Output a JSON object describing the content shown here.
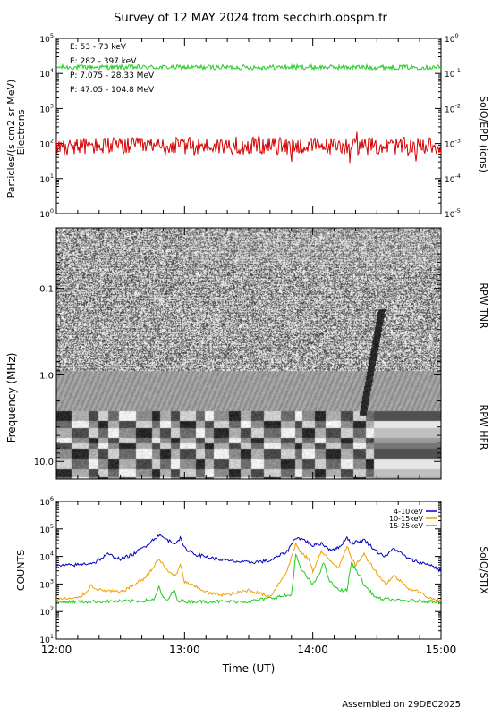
{
  "title": "Survey of 12 MAY 2024 from secchirh.obspm.fr",
  "footer": "Assembled on 29DEC2025",
  "colors": {
    "red": "#d40000",
    "green": "#22cc22",
    "blue": "#0000c0",
    "orange": "#f0a000",
    "black": "#000000"
  },
  "chart_data": [
    {
      "type": "line",
      "panel": "epd",
      "ylabel_left_1": "Particles/(s cm2 sr MeV)",
      "ylabel_left_2": "Electrons",
      "ylabel_right": "SolO/EPD (ions)",
      "yscale": "log",
      "ylim": [
        1,
        100000
      ],
      "yticks": [
        "10^0",
        "10^1",
        "10^2",
        "10^3",
        "10^4",
        "10^5"
      ],
      "ylim_right": [
        1e-05,
        1
      ],
      "yticks_right": [
        "10^-5",
        "10^-4",
        "10^-3",
        "10^-2",
        "10^-1",
        "10^0"
      ],
      "xlim": [
        "12:00",
        "15:00"
      ],
      "legend_position": "top-left",
      "series": [
        {
          "name": "E: 53 - 73 keV",
          "color": "#22cc22",
          "axis": "left",
          "mean": 15000,
          "noise": 0.07
        },
        {
          "name": "E: 282 - 397 keV",
          "color": "#d40000",
          "axis": "left",
          "mean": 85,
          "noise": 0.25
        },
        {
          "name": "P: 7.075 - 28.33 MeV",
          "color": "#000000",
          "axis": "right"
        },
        {
          "name": "P: 47.05 - 104.8 MeV",
          "color": "#0000c0",
          "axis": "right"
        }
      ]
    },
    {
      "type": "heatmap",
      "panel": "rpw",
      "ylabel": "Frequency (MHz)",
      "yscale": "log",
      "ylim": [
        0.02,
        16
      ],
      "yticks": [
        "0.1",
        "1.0",
        "10.0"
      ],
      "label_tnr": "RPW TNR",
      "label_hfr": "RPW HFR",
      "boundary_mhz": 0.9,
      "burst_start": "14:27",
      "xlim": [
        "12:00",
        "15:00"
      ]
    },
    {
      "type": "line",
      "panel": "stix",
      "ylabel": "COUNTS",
      "ylabel_right": "SolO/STIX",
      "xlabel": "Time (UT)",
      "yscale": "log",
      "ylim": [
        10,
        1000000
      ],
      "yticks": [
        "10^1",
        "10^2",
        "10^3",
        "10^4",
        "10^5",
        "10^6"
      ],
      "xlim": [
        "12:00",
        "15:00"
      ],
      "xticks": [
        "12:00",
        "13:00",
        "14:00",
        "15:00"
      ],
      "legend_position": "top-right",
      "series": [
        {
          "name": "4-10keV",
          "color": "#0000c0",
          "x": [
            "12:00",
            "12:10",
            "12:18",
            "12:24",
            "12:30",
            "12:36",
            "12:42",
            "12:48",
            "12:52",
            "12:55",
            "12:58",
            "13:00",
            "13:05",
            "13:12",
            "13:20",
            "13:30",
            "13:40",
            "13:48",
            "13:52",
            "13:56",
            "14:00",
            "14:04",
            "14:08",
            "14:12",
            "14:16",
            "14:18",
            "14:24",
            "14:30",
            "14:34",
            "14:38",
            "14:45",
            "14:50",
            "14:55",
            "15:00"
          ],
          "values": [
            4500,
            5000,
            6000,
            12000,
            8000,
            12000,
            25000,
            60000,
            40000,
            30000,
            45000,
            20000,
            12000,
            9000,
            7000,
            6000,
            7000,
            15000,
            50000,
            40000,
            25000,
            30000,
            18000,
            20000,
            50000,
            30000,
            40000,
            15000,
            10000,
            20000,
            8000,
            6000,
            5000,
            3000
          ]
        },
        {
          "name": "10-15keV",
          "color": "#f0a000",
          "x": [
            "12:00",
            "12:10",
            "12:14",
            "12:16",
            "12:20",
            "12:30",
            "12:36",
            "12:42",
            "12:48",
            "12:52",
            "12:56",
            "12:58",
            "13:00",
            "13:05",
            "13:12",
            "13:20",
            "13:30",
            "13:40",
            "13:48",
            "13:52",
            "13:54",
            "13:58",
            "14:00",
            "14:04",
            "14:08",
            "14:12",
            "14:16",
            "14:18",
            "14:20",
            "14:24",
            "14:30",
            "14:34",
            "14:38",
            "14:45",
            "14:50",
            "14:55",
            "15:00"
          ],
          "values": [
            280,
            300,
            500,
            900,
            600,
            500,
            900,
            1800,
            8000,
            3000,
            2000,
            5000,
            1200,
            800,
            450,
            400,
            600,
            350,
            3000,
            30000,
            15000,
            8000,
            3000,
            15000,
            7000,
            4000,
            25000,
            8000,
            5000,
            12000,
            2500,
            1000,
            2000,
            700,
            500,
            300,
            250
          ]
        },
        {
          "name": "15-25keV",
          "color": "#22cc22",
          "x": [
            "12:00",
            "12:20",
            "12:40",
            "12:46",
            "12:48",
            "12:50",
            "12:52",
            "12:55",
            "12:57",
            "13:00",
            "13:10",
            "13:30",
            "13:50",
            "13:52",
            "13:54",
            "13:58",
            "14:00",
            "14:04",
            "14:05",
            "14:08",
            "14:12",
            "14:16",
            "14:18",
            "14:22",
            "14:24",
            "14:30",
            "14:40",
            "15:00"
          ],
          "values": [
            220,
            230,
            240,
            280,
            800,
            300,
            250,
            600,
            250,
            230,
            230,
            230,
            400,
            12000,
            4000,
            1500,
            900,
            3500,
            6000,
            1200,
            600,
            600,
            6000,
            2000,
            900,
            300,
            250,
            230
          ]
        }
      ]
    }
  ]
}
